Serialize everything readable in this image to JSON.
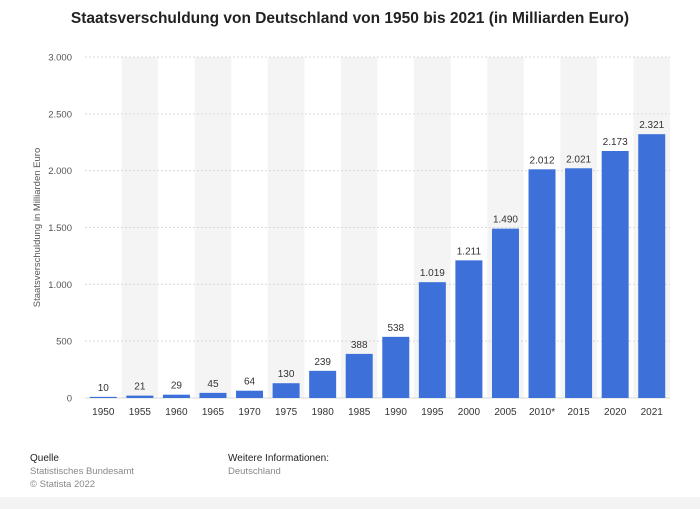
{
  "title": "Staatsverschuldung von Deutschland von 1950 bis 2021 (in Milliarden Euro)",
  "footer": {
    "source_heading": "Quelle",
    "source_name": "Statistisches Bundesamt",
    "copyright": "© Statista 2022",
    "info_heading": "Weitere Informationen:",
    "info_value": "Deutschland"
  },
  "colors": {
    "bar": "#3d71d9",
    "band": "#f4f4f4",
    "grid": "#d9d9d9",
    "text": "#555555"
  },
  "chart_data": {
    "type": "bar",
    "title": "Staatsverschuldung von Deutschland von 1950 bis 2021 (in Milliarden Euro)",
    "xlabel": "",
    "ylabel": "Staatsverschuldung in Milliarden Euro",
    "ylim": [
      0,
      3000
    ],
    "yticks": [
      0,
      500,
      1000,
      1500,
      2000,
      2500,
      3000
    ],
    "ytick_labels": [
      "0",
      "500",
      "1.000",
      "1.500",
      "2.000",
      "2.500",
      "3.000"
    ],
    "grid": true,
    "categories": [
      "1950",
      "1955",
      "1960",
      "1965",
      "1970",
      "1975",
      "1980",
      "1985",
      "1990",
      "1995",
      "2000",
      "2005",
      "2010*",
      "2015",
      "2020",
      "2021"
    ],
    "values": [
      10,
      21,
      29,
      45,
      64,
      130,
      239,
      388,
      538,
      1019,
      1211,
      1490,
      2012,
      2021,
      2173,
      2321
    ],
    "value_labels": [
      "10",
      "21",
      "29",
      "45",
      "64",
      "130",
      "239",
      "388",
      "538",
      "1.019",
      "1.211",
      "1.490",
      "2.012",
      "2.021",
      "2.173",
      "2.321"
    ]
  }
}
